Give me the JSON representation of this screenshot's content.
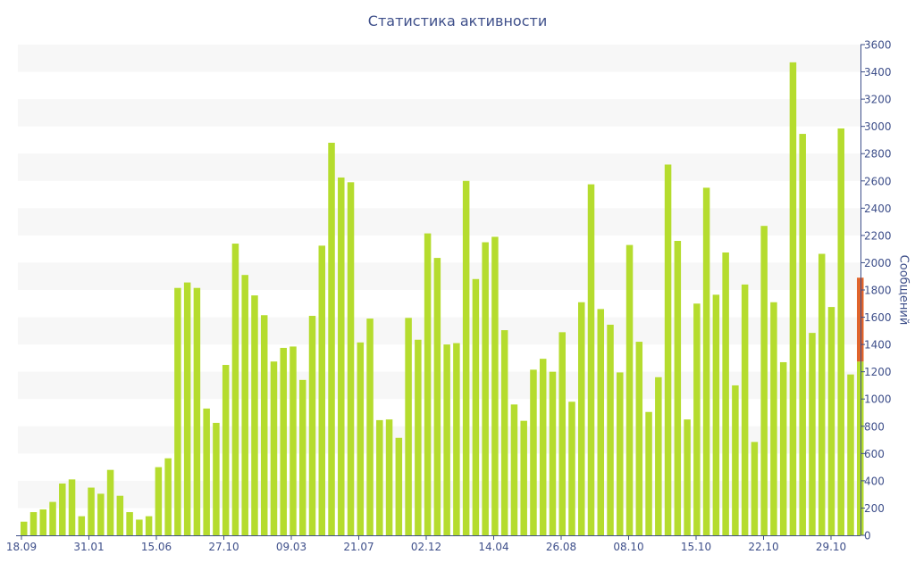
{
  "chart_data": {
    "type": "bar",
    "title": "Статистика активности",
    "xlabel": "",
    "ylabel": "Сообщений",
    "ylim": [
      0,
      3600
    ],
    "yticks": [
      0,
      200,
      400,
      600,
      800,
      1000,
      1200,
      1400,
      1600,
      1800,
      2000,
      2200,
      2400,
      2600,
      2800,
      3000,
      3200,
      3400,
      3600
    ],
    "xtick_labels": [
      "18.09",
      "31.01",
      "15.06",
      "27.10",
      "09.03",
      "21.07",
      "02.12",
      "14.04",
      "26.08",
      "08.10",
      "15.10",
      "22.10",
      "29.10"
    ],
    "grid": "horizontal bands",
    "colors": {
      "bar": "#b5dc2e",
      "highlight": "#e0642c",
      "band": "#f7f7f7",
      "text": "#3e4f8a",
      "axis": "#3e4f8a"
    },
    "values": [
      100,
      170,
      190,
      245,
      380,
      410,
      140,
      350,
      305,
      480,
      290,
      170,
      115,
      140,
      500,
      565,
      1815,
      1855,
      1815,
      930,
      825,
      1250,
      2140,
      1910,
      1760,
      1615,
      1275,
      1375,
      1385,
      1140,
      1610,
      2125,
      2880,
      2625,
      2590,
      1415,
      1590,
      845,
      850,
      715,
      1595,
      1435,
      2215,
      2035,
      1400,
      1410,
      2600,
      1880,
      2150,
      2190,
      1505,
      960,
      840,
      1215,
      1295,
      1200,
      1490,
      980,
      1710,
      2575,
      1660,
      1545,
      1195,
      2130,
      1420,
      905,
      1160,
      2720,
      2160,
      850,
      1700,
      2550,
      1765,
      2075,
      1100,
      1840,
      685,
      2270,
      1710,
      1270,
      3470,
      2945,
      1485,
      2065,
      1675,
      2985,
      1180,
      1275
    ],
    "last_highlight_top": 1890
  }
}
